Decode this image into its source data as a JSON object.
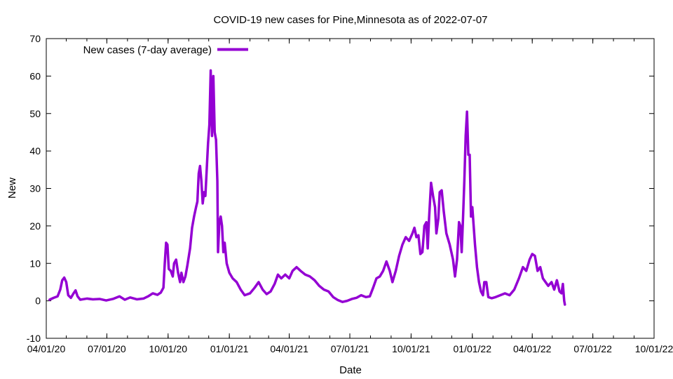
{
  "chart_data": {
    "type": "line",
    "title": "COVID-19 new cases for Pine,Minnesota as of 2022-07-07",
    "xlabel": "Date",
    "ylabel": "New",
    "xlim": [
      "2020-04-01",
      "2022-10-01"
    ],
    "ylim": [
      -10,
      70
    ],
    "x_ticks": [
      {
        "date": "2020-04-01",
        "label": "04/01/20"
      },
      {
        "date": "2020-07-01",
        "label": "07/01/20"
      },
      {
        "date": "2020-10-01",
        "label": "10/01/20"
      },
      {
        "date": "2021-01-01",
        "label": "01/01/21"
      },
      {
        "date": "2021-04-01",
        "label": "04/01/21"
      },
      {
        "date": "2021-07-01",
        "label": "07/01/21"
      },
      {
        "date": "2021-10-01",
        "label": "10/01/21"
      },
      {
        "date": "2022-01-01",
        "label": "01/01/22"
      },
      {
        "date": "2022-04-01",
        "label": "04/01/22"
      },
      {
        "date": "2022-07-01",
        "label": "07/01/22"
      },
      {
        "date": "2022-10-01",
        "label": "10/01/22"
      }
    ],
    "y_ticks": [
      -10,
      0,
      10,
      20,
      30,
      40,
      50,
      60,
      70
    ],
    "grid": false,
    "legend_position": "top-left",
    "series": [
      {
        "name": "New cases (7-day average)",
        "color": "#9400d3",
        "points": [
          [
            "2020-04-06",
            0.3
          ],
          [
            "2020-04-12",
            0.8
          ],
          [
            "2020-04-18",
            1.2
          ],
          [
            "2020-04-22",
            3.0
          ],
          [
            "2020-04-25",
            5.5
          ],
          [
            "2020-04-28",
            6.2
          ],
          [
            "2020-05-01",
            5.0
          ],
          [
            "2020-05-04",
            1.5
          ],
          [
            "2020-05-08",
            0.8
          ],
          [
            "2020-05-12",
            2.0
          ],
          [
            "2020-05-15",
            2.8
          ],
          [
            "2020-05-18",
            1.2
          ],
          [
            "2020-05-22",
            0.3
          ],
          [
            "2020-06-01",
            0.6
          ],
          [
            "2020-06-10",
            0.4
          ],
          [
            "2020-06-20",
            0.5
          ],
          [
            "2020-06-30",
            0.1
          ],
          [
            "2020-07-10",
            0.5
          ],
          [
            "2020-07-20",
            1.2
          ],
          [
            "2020-07-28",
            0.3
          ],
          [
            "2020-08-05",
            0.9
          ],
          [
            "2020-08-15",
            0.4
          ],
          [
            "2020-08-25",
            0.6
          ],
          [
            "2020-09-01",
            1.2
          ],
          [
            "2020-09-08",
            2.0
          ],
          [
            "2020-09-15",
            1.6
          ],
          [
            "2020-09-20",
            2.2
          ],
          [
            "2020-09-24",
            3.5
          ],
          [
            "2020-09-26",
            10.0
          ],
          [
            "2020-09-28",
            15.5
          ],
          [
            "2020-09-30",
            15.0
          ],
          [
            "2020-10-02",
            8.5
          ],
          [
            "2020-10-05",
            8.0
          ],
          [
            "2020-10-08",
            6.5
          ],
          [
            "2020-10-10",
            10.0
          ],
          [
            "2020-10-13",
            11.0
          ],
          [
            "2020-10-16",
            7.5
          ],
          [
            "2020-10-19",
            5.0
          ],
          [
            "2020-10-21",
            7.5
          ],
          [
            "2020-10-24",
            5.0
          ],
          [
            "2020-10-27",
            6.5
          ],
          [
            "2020-10-30",
            9.5
          ],
          [
            "2020-11-03",
            14.0
          ],
          [
            "2020-11-06",
            19.5
          ],
          [
            "2020-11-09",
            22.5
          ],
          [
            "2020-11-12",
            25.0
          ],
          [
            "2020-11-14",
            26.5
          ],
          [
            "2020-11-16",
            34.0
          ],
          [
            "2020-11-18",
            36.0
          ],
          [
            "2020-11-20",
            32.0
          ],
          [
            "2020-11-22",
            26.0
          ],
          [
            "2020-11-24",
            29.0
          ],
          [
            "2020-11-26",
            28.0
          ],
          [
            "2020-11-28",
            35.0
          ],
          [
            "2020-11-30",
            42.0
          ],
          [
            "2020-12-02",
            47.0
          ],
          [
            "2020-12-04",
            61.5
          ],
          [
            "2020-12-06",
            44.0
          ],
          [
            "2020-12-08",
            60.0
          ],
          [
            "2020-12-10",
            45.0
          ],
          [
            "2020-12-12",
            43.0
          ],
          [
            "2020-12-14",
            32.0
          ],
          [
            "2020-12-15",
            13.0
          ],
          [
            "2020-12-17",
            21.0
          ],
          [
            "2020-12-19",
            22.5
          ],
          [
            "2020-12-21",
            20.0
          ],
          [
            "2020-12-23",
            13.0
          ],
          [
            "2020-12-25",
            15.5
          ],
          [
            "2020-12-28",
            10.0
          ],
          [
            "2021-01-01",
            7.5
          ],
          [
            "2021-01-06",
            6.0
          ],
          [
            "2021-01-12",
            5.0
          ],
          [
            "2021-01-18",
            3.0
          ],
          [
            "2021-01-24",
            1.5
          ],
          [
            "2021-02-01",
            2.0
          ],
          [
            "2021-02-08",
            3.5
          ],
          [
            "2021-02-14",
            5.0
          ],
          [
            "2021-02-20",
            3.0
          ],
          [
            "2021-02-26",
            1.8
          ],
          [
            "2021-03-04",
            2.5
          ],
          [
            "2021-03-10",
            4.5
          ],
          [
            "2021-03-15",
            7.0
          ],
          [
            "2021-03-20",
            6.0
          ],
          [
            "2021-03-26",
            7.0
          ],
          [
            "2021-04-01",
            6.0
          ],
          [
            "2021-04-06",
            8.0
          ],
          [
            "2021-04-12",
            9.0
          ],
          [
            "2021-04-18",
            8.0
          ],
          [
            "2021-04-25",
            7.0
          ],
          [
            "2021-05-02",
            6.5
          ],
          [
            "2021-05-09",
            5.5
          ],
          [
            "2021-05-16",
            4.0
          ],
          [
            "2021-05-23",
            3.0
          ],
          [
            "2021-05-30",
            2.5
          ],
          [
            "2021-06-06",
            1.0
          ],
          [
            "2021-06-13",
            0.2
          ],
          [
            "2021-06-20",
            -0.3
          ],
          [
            "2021-06-27",
            0.0
          ],
          [
            "2021-07-04",
            0.5
          ],
          [
            "2021-07-11",
            0.8
          ],
          [
            "2021-07-18",
            1.5
          ],
          [
            "2021-07-25",
            1.0
          ],
          [
            "2021-07-31",
            1.2
          ],
          [
            "2021-08-05",
            3.5
          ],
          [
            "2021-08-10",
            6.0
          ],
          [
            "2021-08-15",
            6.5
          ],
          [
            "2021-08-20",
            8.0
          ],
          [
            "2021-08-25",
            10.5
          ],
          [
            "2021-08-30",
            8.0
          ],
          [
            "2021-09-03",
            5.0
          ],
          [
            "2021-09-08",
            8.0
          ],
          [
            "2021-09-13",
            12.0
          ],
          [
            "2021-09-18",
            15.0
          ],
          [
            "2021-09-23",
            17.0
          ],
          [
            "2021-09-28",
            16.0
          ],
          [
            "2021-10-03",
            18.0
          ],
          [
            "2021-10-06",
            19.5
          ],
          [
            "2021-10-09",
            17.0
          ],
          [
            "2021-10-12",
            17.5
          ],
          [
            "2021-10-15",
            12.5
          ],
          [
            "2021-10-18",
            13.0
          ],
          [
            "2021-10-21",
            20.0
          ],
          [
            "2021-10-24",
            21.0
          ],
          [
            "2021-10-26",
            14.0
          ],
          [
            "2021-10-28",
            22.0
          ],
          [
            "2021-10-31",
            31.5
          ],
          [
            "2021-11-03",
            28.0
          ],
          [
            "2021-11-06",
            25.0
          ],
          [
            "2021-11-08",
            18.0
          ],
          [
            "2021-11-11",
            22.0
          ],
          [
            "2021-11-13",
            29.0
          ],
          [
            "2021-11-16",
            29.5
          ],
          [
            "2021-11-19",
            24.0
          ],
          [
            "2021-11-23",
            18.0
          ],
          [
            "2021-11-28",
            15.0
          ],
          [
            "2021-12-03",
            11.0
          ],
          [
            "2021-12-06",
            6.5
          ],
          [
            "2021-12-09",
            11.0
          ],
          [
            "2021-12-12",
            21.0
          ],
          [
            "2021-12-14",
            20.0
          ],
          [
            "2021-12-16",
            13.0
          ],
          [
            "2021-12-18",
            22.0
          ],
          [
            "2021-12-20",
            32.0
          ],
          [
            "2021-12-22",
            44.0
          ],
          [
            "2021-12-24",
            50.5
          ],
          [
            "2021-12-26",
            39.0
          ],
          [
            "2021-12-28",
            39.0
          ],
          [
            "2021-12-30",
            22.5
          ],
          [
            "2022-01-01",
            25.0
          ],
          [
            "2022-01-03",
            20.0
          ],
          [
            "2022-01-05",
            15.0
          ],
          [
            "2022-01-08",
            9.0
          ],
          [
            "2022-01-11",
            5.0
          ],
          [
            "2022-01-14",
            2.5
          ],
          [
            "2022-01-17",
            1.5
          ],
          [
            "2022-01-19",
            5.0
          ],
          [
            "2022-01-22",
            5.0
          ],
          [
            "2022-01-25",
            1.0
          ],
          [
            "2022-01-30",
            0.7
          ],
          [
            "2022-02-05",
            1.0
          ],
          [
            "2022-02-12",
            1.5
          ],
          [
            "2022-02-19",
            2.0
          ],
          [
            "2022-02-26",
            1.5
          ],
          [
            "2022-03-05",
            3.0
          ],
          [
            "2022-03-12",
            6.0
          ],
          [
            "2022-03-18",
            9.0
          ],
          [
            "2022-03-23",
            8.0
          ],
          [
            "2022-03-28",
            11.0
          ],
          [
            "2022-04-01",
            12.5
          ],
          [
            "2022-04-05",
            12.0
          ],
          [
            "2022-04-09",
            8.0
          ],
          [
            "2022-04-13",
            9.0
          ],
          [
            "2022-04-17",
            6.0
          ],
          [
            "2022-04-21",
            5.0
          ],
          [
            "2022-04-25",
            4.0
          ],
          [
            "2022-04-30",
            5.0
          ],
          [
            "2022-05-04",
            3.0
          ],
          [
            "2022-05-08",
            5.5
          ],
          [
            "2022-05-12",
            2.5
          ],
          [
            "2022-05-15",
            2.0
          ],
          [
            "2022-05-17",
            4.5
          ],
          [
            "2022-05-19",
            0.0
          ],
          [
            "2022-05-20",
            -1.0
          ]
        ]
      }
    ]
  }
}
